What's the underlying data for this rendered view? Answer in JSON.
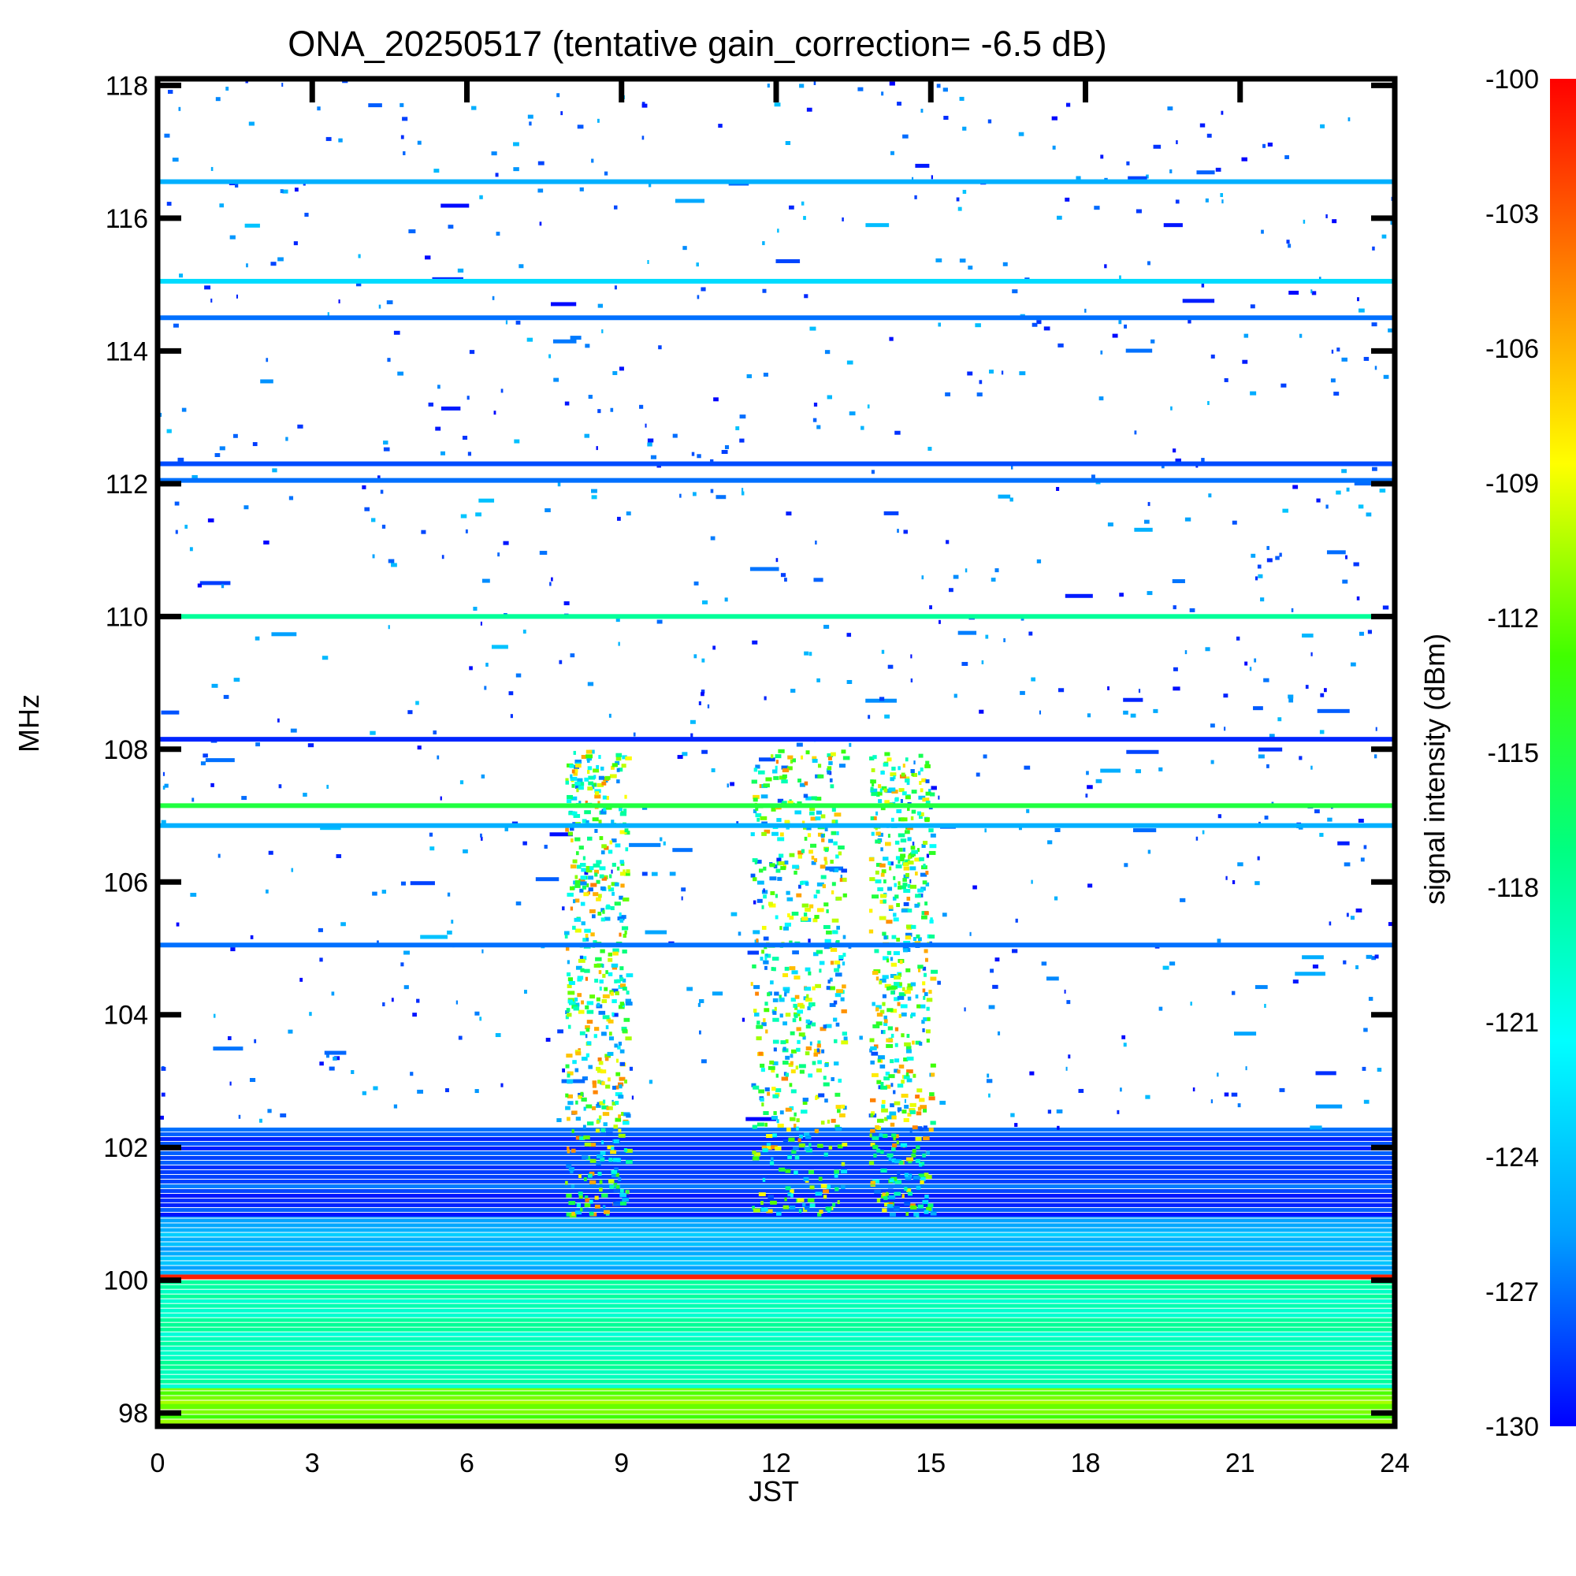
{
  "chart_data": {
    "type": "heatmap",
    "title": "ONA_20250517 (tentative gain_correction= -6.5 dB)",
    "xlabel": "JST",
    "ylabel": "MHz",
    "xlim": [
      0,
      24
    ],
    "ylim": [
      97.8,
      118.1
    ],
    "xticks": [
      "0",
      "3",
      "6",
      "9",
      "12",
      "15",
      "18",
      "21",
      "24"
    ],
    "yticks": [
      "98",
      "100",
      "102",
      "104",
      "106",
      "108",
      "110",
      "112",
      "114",
      "116",
      "118"
    ],
    "colorbar": {
      "label": "signal intensity (dBm)",
      "min": -130,
      "max": -100,
      "ticks": [
        "-100",
        "-103",
        "-106",
        "-109",
        "-112",
        "-115",
        "-118",
        "-121",
        "-124",
        "-127",
        "-130"
      ],
      "colormap": [
        "#0000ff",
        "#00a0ff",
        "#00ffff",
        "#00ff80",
        "#40ff00",
        "#ffff00",
        "#ff8000",
        "#ff0000"
      ]
    },
    "continuous_bands": [
      {
        "freq_mhz": 116.55,
        "dbm": -125
      },
      {
        "freq_mhz": 115.05,
        "dbm": -123
      },
      {
        "freq_mhz": 114.5,
        "dbm": -127
      },
      {
        "freq_mhz": 112.3,
        "dbm": -128
      },
      {
        "freq_mhz": 112.05,
        "dbm": -127
      },
      {
        "freq_mhz": 110.0,
        "dbm": -118
      },
      {
        "freq_mhz": 108.15,
        "dbm": -129
      },
      {
        "freq_mhz": 107.15,
        "dbm": -115
      },
      {
        "freq_mhz": 106.85,
        "dbm": -125
      },
      {
        "freq_mhz": 105.05,
        "dbm": -127
      },
      {
        "freq_mhz": 100.05,
        "dbm": -101
      },
      {
        "freq_mhz": 98.1,
        "dbm": -112
      }
    ],
    "background_regions": [
      {
        "from_mhz": 97.8,
        "to_mhz": 98.4,
        "dbm": -112
      },
      {
        "from_mhz": 98.4,
        "to_mhz": 100.0,
        "dbm": -119
      },
      {
        "from_mhz": 100.1,
        "to_mhz": 101.0,
        "dbm": -125
      },
      {
        "from_mhz": 101.0,
        "to_mhz": 102.3,
        "dbm": -128
      }
    ],
    "active_periods_jst": [
      [
        7.9,
        9.1
      ],
      [
        11.5,
        13.3
      ],
      [
        13.8,
        15.0
      ]
    ]
  }
}
